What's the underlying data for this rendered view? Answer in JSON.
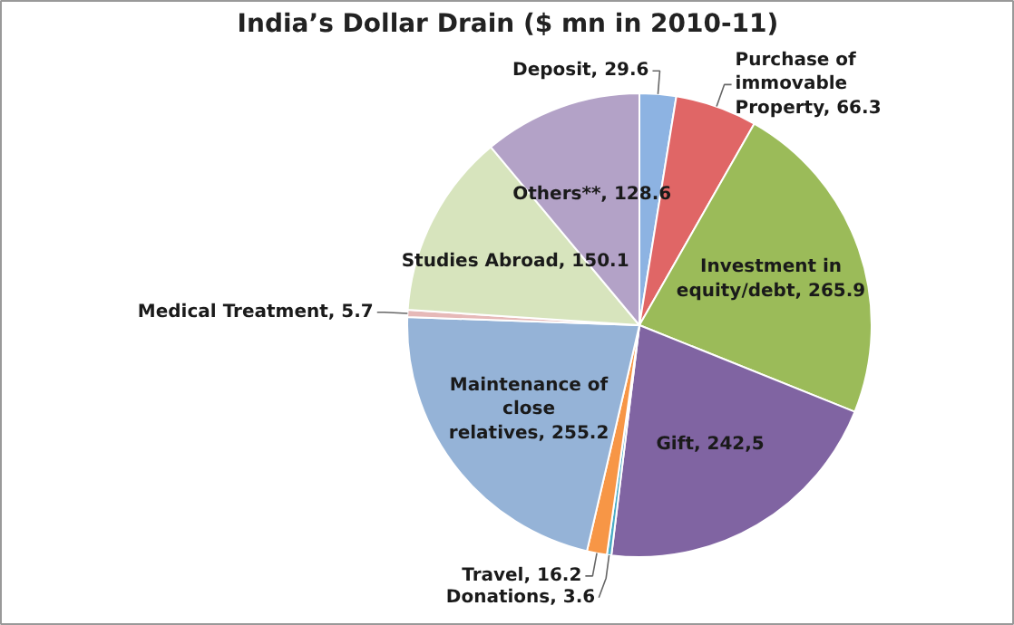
{
  "chart_data": {
    "type": "pie",
    "title": "India’s Dollar Drain ($ mn in 2010-11)",
    "categories": [
      "Deposit",
      "Purchase of immovable Property",
      "Investment in equity/debt",
      "Gift",
      "Donations",
      "Travel",
      "Maintenance of close relatives",
      "Medical Treatment",
      "Studies Abroad",
      "Others**"
    ],
    "values": [
      29.6,
      66.3,
      265.9,
      242.5,
      3.6,
      16.2,
      255.2,
      5.7,
      150.1,
      128.6
    ],
    "value_labels": [
      "29.6",
      "66.3",
      "265.9",
      "242,5",
      "3.6",
      "16.2",
      "255.2",
      "5.7",
      "150.1",
      "128.6"
    ],
    "colors": [
      "#8db3e2",
      "#e06666",
      "#9bbb59",
      "#8064a2",
      "#4bacc6",
      "#f79646",
      "#95b3d7",
      "#e6b9b8",
      "#d7e4bd",
      "#b3a2c7"
    ]
  }
}
